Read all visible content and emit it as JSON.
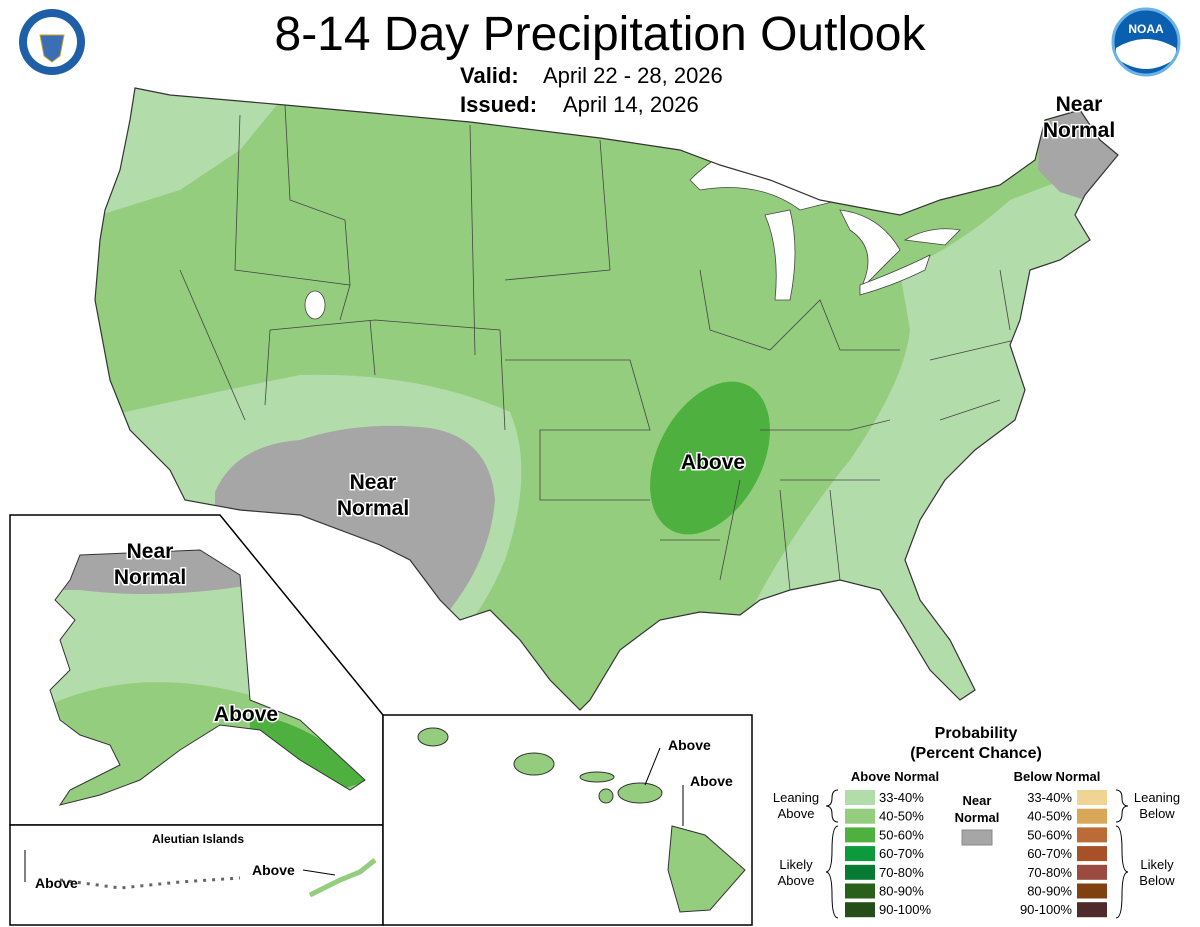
{
  "header": {
    "title": "8-14 Day Precipitation Outlook",
    "valid_label": "Valid:",
    "valid": "April 22 - 28, 2026",
    "issued_label": "Issued:",
    "issued": "April 14, 2026"
  },
  "logos": {
    "noaa": "NOAA"
  },
  "map_labels": {
    "conus_northeast": [
      "Near",
      "Normal"
    ],
    "conus_central": [
      "Above"
    ],
    "conus_southwest": [
      "Near",
      "Normal"
    ],
    "alaska_north": [
      "Near",
      "Normal"
    ],
    "alaska_southeast": [
      "Above"
    ],
    "aleutian_title": "Aleutian Islands",
    "aleutian_west": "Above",
    "aleutian_east": "Above",
    "hawaii_north": "Above",
    "hawaii_south": "Above"
  },
  "legend": {
    "title": [
      "Probability",
      "(Percent Chance)"
    ],
    "above": {
      "heading": "Above Normal",
      "rows": [
        {
          "label": "33-40%",
          "color": "#b3dcab"
        },
        {
          "label": "40-50%",
          "color": "#94cd7e"
        },
        {
          "label": "50-60%",
          "color": "#4eb03f"
        },
        {
          "label": "60-70%",
          "color": "#0c9a3d"
        },
        {
          "label": "70-80%",
          "color": "#077a34"
        },
        {
          "label": "80-90%",
          "color": "#285f19"
        },
        {
          "label": "90-100%",
          "color": "#254d1a"
        }
      ]
    },
    "below": {
      "heading": "Below Normal",
      "rows": [
        {
          "label": "33-40%",
          "color": "#f0d493"
        },
        {
          "label": "40-50%",
          "color": "#d8a757"
        },
        {
          "label": "50-60%",
          "color": "#bb6c36"
        },
        {
          "label": "60-70%",
          "color": "#a85028"
        },
        {
          "label": "70-80%",
          "color": "#9b4a3f"
        },
        {
          "label": "80-90%",
          "color": "#804012"
        },
        {
          "label": "90-100%",
          "color": "#4e2a2b"
        }
      ]
    },
    "near": {
      "heading": [
        "Near",
        "Normal"
      ],
      "color": "#a6a6a6"
    },
    "leaning_above": [
      "Leaning",
      "Above"
    ],
    "likely_above": [
      "Likely",
      "Above"
    ],
    "leaning_below": [
      "Leaning",
      "Below"
    ],
    "likely_below": [
      "Likely",
      "Below"
    ]
  }
}
